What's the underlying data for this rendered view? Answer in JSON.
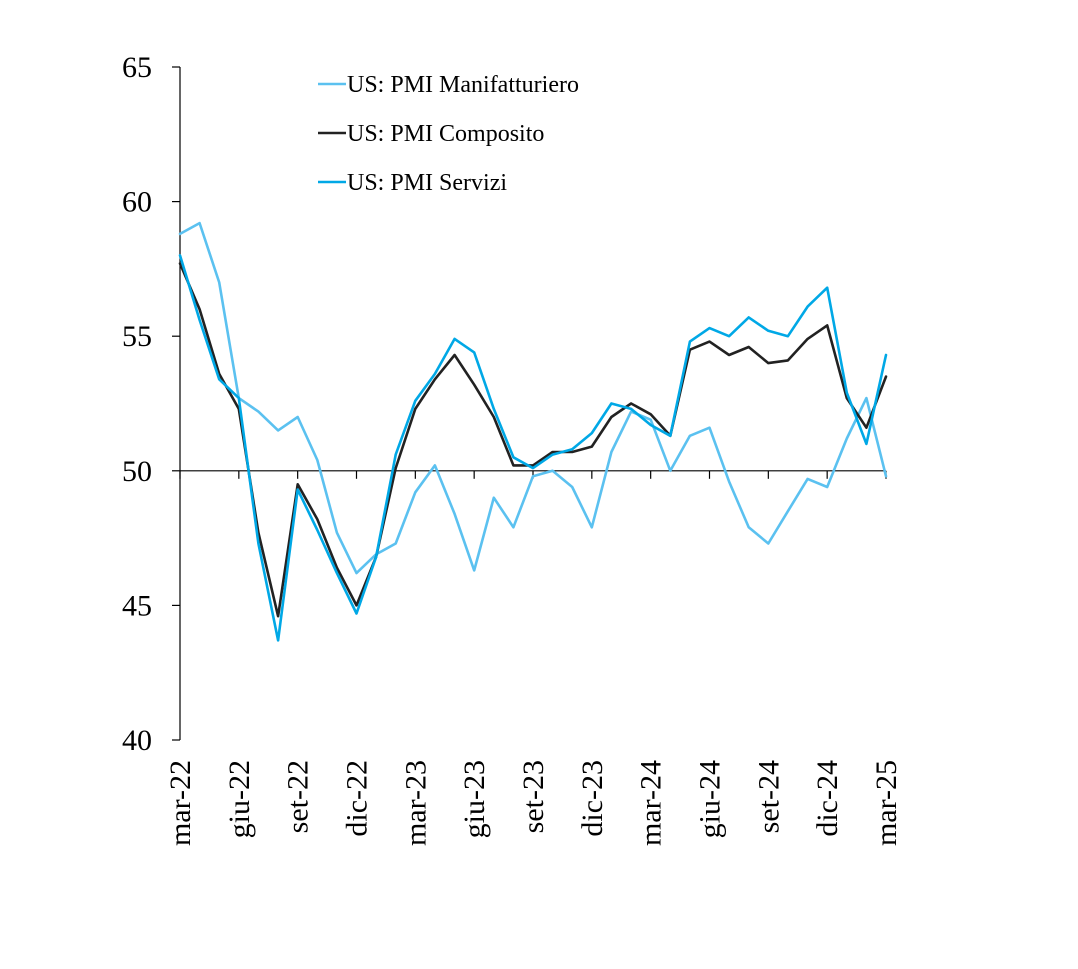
{
  "chart_data": {
    "type": "line",
    "title": "",
    "xlabel": "",
    "ylabel": "",
    "ylim": [
      40,
      65
    ],
    "y_ticks": [
      40,
      45,
      50,
      55,
      60,
      65
    ],
    "y_tick_labels": [
      "40",
      "45",
      "50",
      "55",
      "60",
      "65"
    ],
    "baseline": 50,
    "grid": false,
    "legend_position": "top-center",
    "x": [
      "mar-22",
      "apr-22",
      "mag-22",
      "giu-22",
      "lug-22",
      "ago-22",
      "set-22",
      "ott-22",
      "nov-22",
      "dic-22",
      "gen-23",
      "feb-23",
      "mar-23",
      "apr-23",
      "mag-23",
      "giu-23",
      "lug-23",
      "ago-23",
      "set-23",
      "ott-23",
      "nov-23",
      "dic-23",
      "gen-24",
      "feb-24",
      "mar-24",
      "apr-24",
      "mag-24",
      "giu-24",
      "lug-24",
      "ago-24",
      "set-24",
      "ott-24",
      "nov-24",
      "dic-24",
      "gen-25",
      "feb-25",
      "mar-25"
    ],
    "x_tick_labels": [
      {
        "index": 0,
        "label": "mar-22"
      },
      {
        "index": 3,
        "label": "giu-22"
      },
      {
        "index": 6,
        "label": "set-22"
      },
      {
        "index": 9,
        "label": "dic-22"
      },
      {
        "index": 12,
        "label": "mar-23"
      },
      {
        "index": 15,
        "label": "giu-23"
      },
      {
        "index": 18,
        "label": "set-23"
      },
      {
        "index": 21,
        "label": "dic-23"
      },
      {
        "index": 24,
        "label": "mar-24"
      },
      {
        "index": 27,
        "label": "giu-24"
      },
      {
        "index": 30,
        "label": "set-24"
      },
      {
        "index": 33,
        "label": "dic-24"
      },
      {
        "index": 36,
        "label": "mar-25"
      }
    ],
    "series": [
      {
        "name": "US: PMI Manifatturiero",
        "color": "#5bc1f0",
        "values": [
          58.8,
          59.2,
          57.0,
          52.7,
          52.2,
          51.5,
          52.0,
          50.4,
          47.7,
          46.2,
          46.9,
          47.3,
          49.2,
          50.2,
          48.4,
          46.3,
          49.0,
          47.9,
          49.8,
          50.0,
          49.4,
          47.9,
          50.7,
          52.2,
          51.9,
          50.0,
          51.3,
          51.6,
          49.6,
          47.9,
          47.3,
          48.5,
          49.7,
          49.4,
          51.2,
          52.7,
          49.8
        ]
      },
      {
        "name": "US: PMI Composito",
        "color": "#222222",
        "values": [
          57.7,
          56.0,
          53.6,
          52.3,
          47.7,
          44.6,
          49.5,
          48.2,
          46.4,
          45.0,
          46.8,
          50.1,
          52.3,
          53.4,
          54.3,
          53.2,
          52.0,
          50.2,
          50.2,
          50.7,
          50.7,
          50.9,
          52.0,
          52.5,
          52.1,
          51.3,
          54.5,
          54.8,
          54.3,
          54.6,
          54.0,
          54.1,
          54.9,
          55.4,
          52.7,
          51.6,
          53.5
        ]
      },
      {
        "name": "US: PMI Servizi",
        "color": "#00a8e6",
        "values": [
          58.0,
          55.6,
          53.4,
          52.7,
          47.3,
          43.7,
          49.3,
          47.8,
          46.2,
          44.7,
          46.8,
          50.6,
          52.6,
          53.6,
          54.9,
          54.4,
          52.3,
          50.5,
          50.1,
          50.6,
          50.8,
          51.4,
          52.5,
          52.3,
          51.7,
          51.3,
          54.8,
          55.3,
          55.0,
          55.7,
          55.2,
          55.0,
          56.1,
          56.8,
          52.9,
          51.0,
          54.3
        ]
      }
    ]
  }
}
